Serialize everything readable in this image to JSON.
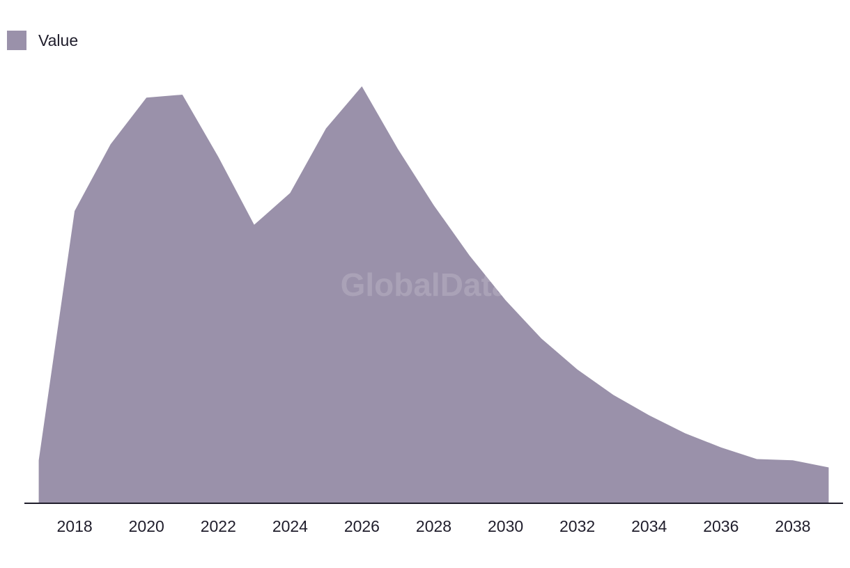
{
  "legend": {
    "label": "Value",
    "color": "#9a91aa"
  },
  "watermark": "GlobalData",
  "chart_data": {
    "type": "area",
    "title": "",
    "xlabel": "",
    "ylabel": "",
    "x": [
      2017,
      2018,
      2019,
      2020,
      2021,
      2022,
      2023,
      2024,
      2025,
      2026,
      2027,
      2028,
      2029,
      2030,
      2031,
      2032,
      2033,
      2034,
      2035,
      2036,
      2037,
      2038,
      2039
    ],
    "xticks": [
      "2018",
      "2020",
      "2022",
      "2024",
      "2026",
      "2028",
      "2030",
      "2032",
      "2034",
      "2036",
      "2038"
    ],
    "xlim": [
      2016.6,
      2039.4
    ],
    "ylim": [
      0,
      100
    ],
    "grid": false,
    "legend_position": "top-left",
    "series": [
      {
        "name": "Value",
        "color": "#9a91aa",
        "values": [
          10.3,
          70.1,
          86.1,
          97.3,
          98.0,
          83.1,
          66.8,
          74.4,
          89.9,
          100.0,
          85.0,
          71.5,
          59.4,
          48.7,
          39.5,
          32.1,
          26.0,
          21.1,
          16.8,
          13.4,
          10.6,
          10.3,
          8.6
        ]
      }
    ]
  }
}
